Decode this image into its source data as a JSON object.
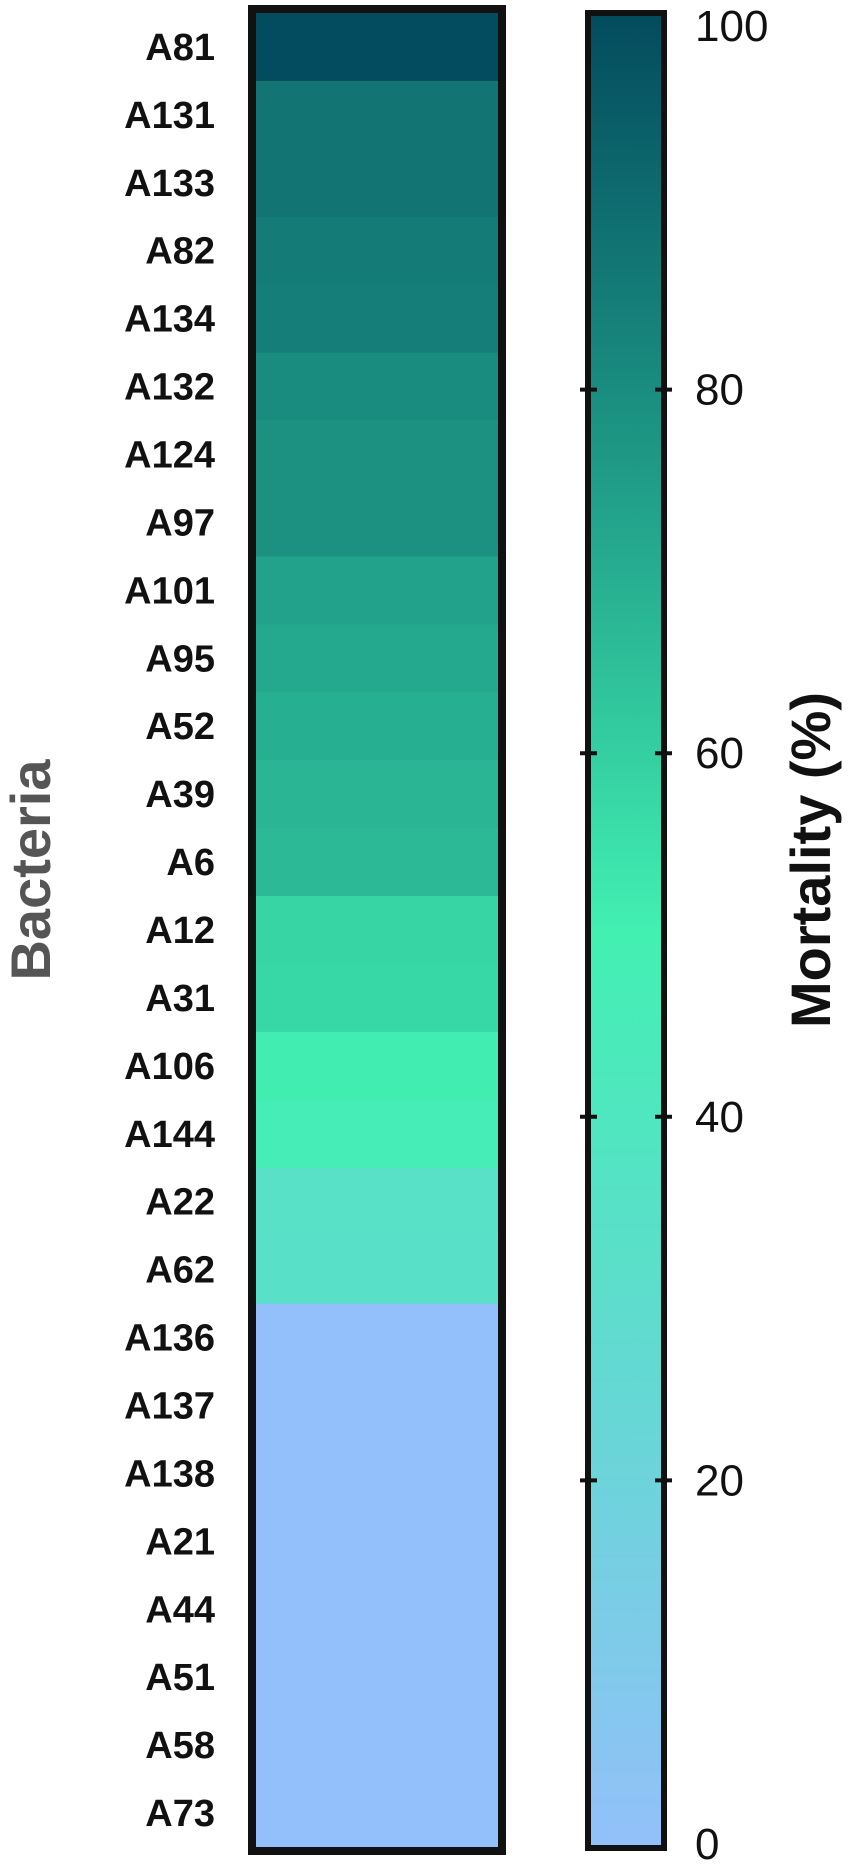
{
  "chart_data": {
    "type": "heatmap",
    "ylabel": "Bacteria",
    "colorbar_label": "Mortality (%)",
    "colorbar_range": [
      0,
      100
    ],
    "colorbar_ticks": [
      0,
      20,
      40,
      60,
      80,
      100
    ],
    "colormap": {
      "stops": [
        {
          "value": 0,
          "color": "#93c0fa"
        },
        {
          "value": 25,
          "color": "#64d8d3"
        },
        {
          "value": 50,
          "color": "#42f0b2"
        },
        {
          "value": 75,
          "color": "#1f9b87"
        },
        {
          "value": 100,
          "color": "#034b5e"
        }
      ]
    },
    "rows": [
      "A81",
      "A131",
      "A133",
      "A82",
      "A134",
      "A132",
      "A124",
      "A97",
      "A101",
      "A95",
      "A52",
      "A39",
      "A6",
      "A12",
      "A31",
      "A106",
      "A144",
      "A22",
      "A62",
      "A136",
      "A137",
      "A138",
      "A21",
      "A44",
      "A51",
      "A58",
      "A73"
    ],
    "values": [
      100,
      87,
      87,
      85,
      84,
      80,
      78,
      78,
      73,
      71,
      69,
      67,
      66,
      58,
      57,
      51,
      47,
      34,
      33,
      0,
      0,
      0,
      0,
      0,
      0,
      0,
      0
    ]
  },
  "style": {
    "title_color": "#555555",
    "colorbar_title_color": "#111111",
    "frame_color": "#111111"
  }
}
